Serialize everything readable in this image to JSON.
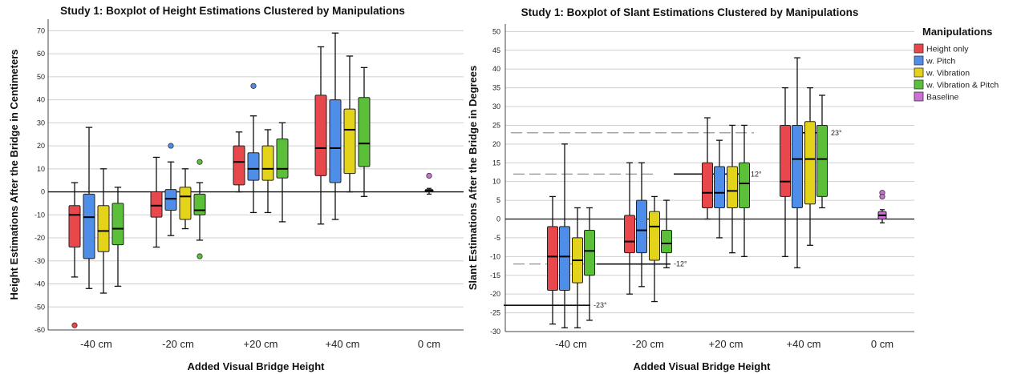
{
  "chart_data": [
    {
      "type": "boxplot",
      "title": "Study 1:  Boxplot of Height  Estimations Clustered by Manipulations",
      "xlabel": "Added Visual Bridge Height",
      "ylabel": "Height  Estimations After the Bridge in Centimeters",
      "ylim": [
        -60,
        75
      ],
      "yticks": [
        -60,
        -50,
        -40,
        -30,
        -20,
        -10,
        0,
        10,
        20,
        30,
        40,
        50,
        60,
        70
      ],
      "categories": [
        "-40 cm",
        "-20 cm",
        "+20 cm",
        "+40 cm",
        "0 cm"
      ],
      "grid": true,
      "series": [
        {
          "name": "Height only",
          "color": "#e8474b",
          "boxes": [
            {
              "category": "-40 cm",
              "min": -37,
              "q1": -24,
              "median": -10,
              "q3": -6,
              "max": 4,
              "outliers": [
                -58
              ]
            },
            {
              "category": "-20 cm",
              "min": -24,
              "q1": -11,
              "median": -6,
              "q3": 0,
              "max": 15,
              "outliers": []
            },
            {
              "category": "+20 cm",
              "min": 0,
              "q1": 3,
              "median": 13,
              "q3": 20,
              "max": 26,
              "outliers": []
            },
            {
              "category": "+40 cm",
              "min": -14,
              "q1": 7,
              "median": 19,
              "q3": 42,
              "max": 63,
              "outliers": []
            }
          ]
        },
        {
          "name": "w. Pitch",
          "color": "#4f8ee8",
          "boxes": [
            {
              "category": "-40 cm",
              "min": -42,
              "q1": -29,
              "median": -11,
              "q3": -1,
              "max": 28,
              "outliers": []
            },
            {
              "category": "-20 cm",
              "min": -19,
              "q1": -8,
              "median": -3,
              "q3": 1,
              "max": 13,
              "outliers": [
                20
              ]
            },
            {
              "category": "+20 cm",
              "min": -9,
              "q1": 5,
              "median": 10,
              "q3": 17,
              "max": 33,
              "outliers": [
                46
              ]
            },
            {
              "category": "+40 cm",
              "min": -12,
              "q1": 4,
              "median": 19,
              "q3": 40,
              "max": 69,
              "outliers": []
            }
          ]
        },
        {
          "name": "w. Vibration",
          "color": "#e3d31a",
          "boxes": [
            {
              "category": "-40 cm",
              "min": -44,
              "q1": -26,
              "median": -17,
              "q3": -6,
              "max": 10,
              "outliers": []
            },
            {
              "category": "-20 cm",
              "min": -16,
              "q1": -12,
              "median": -2,
              "q3": 2,
              "max": 10,
              "outliers": []
            },
            {
              "category": "+20 cm",
              "min": -9,
              "q1": 5,
              "median": 10,
              "q3": 20,
              "max": 27,
              "outliers": []
            },
            {
              "category": "+40 cm",
              "min": 0,
              "q1": 8,
              "median": 27,
              "q3": 36,
              "max": 59,
              "outliers": []
            }
          ]
        },
        {
          "name": "w. Vibration & Pitch",
          "color": "#5cbf3a",
          "boxes": [
            {
              "category": "-40 cm",
              "min": -41,
              "q1": -23,
              "median": -16,
              "q3": -5,
              "max": 2,
              "outliers": []
            },
            {
              "category": "-20 cm",
              "min": -21,
              "q1": -10,
              "median": -8,
              "q3": -1,
              "max": 4,
              "outliers": [
                13,
                -28
              ]
            },
            {
              "category": "+20 cm",
              "min": -13,
              "q1": 6,
              "median": 10,
              "q3": 23,
              "max": 30,
              "outliers": []
            },
            {
              "category": "+40 cm",
              "min": -2,
              "q1": 11,
              "median": 21,
              "q3": 41,
              "max": 54,
              "outliers": []
            }
          ]
        },
        {
          "name": "Baseline",
          "color": "#cc6fd6",
          "boxes": [
            {
              "category": "0 cm",
              "min": -1,
              "q1": 0,
              "median": 0.5,
              "q3": 1,
              "max": 1.5,
              "outliers": [
                7
              ]
            }
          ]
        }
      ]
    },
    {
      "type": "boxplot",
      "title": "Study 1: Boxplot of Slant Estimations Clustered by Manipulations",
      "xlabel": "Added Visual Bridge Height",
      "ylabel": "Slant Estimations After the Bridge in Degrees",
      "ylim": [
        -30,
        52
      ],
      "yticks": [
        -30,
        -25,
        -20,
        -15,
        -10,
        -5,
        0,
        5,
        10,
        15,
        20,
        25,
        30,
        35,
        40,
        45,
        50
      ],
      "categories": [
        "-40 cm",
        "-20 cm",
        "+20 cm",
        "+40 cm",
        "0 cm"
      ],
      "grid": true,
      "legend": {
        "title": "Manipulations",
        "position": "top-right"
      },
      "reference_lines": [
        {
          "value": 23,
          "label": "23°"
        },
        {
          "value": 12,
          "label": "12°"
        },
        {
          "value": -12,
          "label": "-12°"
        },
        {
          "value": -23,
          "label": "-23°"
        }
      ],
      "series": [
        {
          "name": "Height only",
          "color": "#e8474b",
          "boxes": [
            {
              "category": "-40 cm",
              "min": -28,
              "q1": -19,
              "median": -10,
              "q3": -2,
              "max": 6,
              "outliers": []
            },
            {
              "category": "-20 cm",
              "min": -20,
              "q1": -9,
              "median": -6,
              "q3": 1,
              "max": 15,
              "outliers": []
            },
            {
              "category": "+20 cm",
              "min": 0,
              "q1": 3,
              "median": 7,
              "q3": 15,
              "max": 27,
              "outliers": []
            },
            {
              "category": "+40 cm",
              "min": -10,
              "q1": 6,
              "median": 10,
              "q3": 25,
              "max": 35,
              "outliers": []
            }
          ]
        },
        {
          "name": "w. Pitch",
          "color": "#4f8ee8",
          "boxes": [
            {
              "category": "-40 cm",
              "min": -29,
              "q1": -19,
              "median": -10,
              "q3": -2,
              "max": 20,
              "outliers": []
            },
            {
              "category": "-20 cm",
              "min": -18,
              "q1": -9,
              "median": -3,
              "q3": 5,
              "max": 15,
              "outliers": []
            },
            {
              "category": "+20 cm",
              "min": -5,
              "q1": 3,
              "median": 7,
              "q3": 14,
              "max": 21,
              "outliers": []
            },
            {
              "category": "+40 cm",
              "min": -13,
              "q1": 3,
              "median": 16,
              "q3": 25,
              "max": 43,
              "outliers": []
            }
          ]
        },
        {
          "name": "w. Vibration",
          "color": "#e3d31a",
          "boxes": [
            {
              "category": "-40 cm",
              "min": -29,
              "q1": -17,
              "median": -11,
              "q3": -5,
              "max": 3,
              "outliers": []
            },
            {
              "category": "-20 cm",
              "min": -22,
              "q1": -11,
              "median": -2,
              "q3": 2,
              "max": 6,
              "outliers": []
            },
            {
              "category": "+20 cm",
              "min": -9,
              "q1": 3,
              "median": 7.5,
              "q3": 14,
              "max": 25,
              "outliers": []
            },
            {
              "category": "+40 cm",
              "min": -7,
              "q1": 4,
              "median": 16,
              "q3": 26,
              "max": 35,
              "outliers": []
            }
          ]
        },
        {
          "name": "w. Vibration & Pitch",
          "color": "#5cbf3a",
          "boxes": [
            {
              "category": "-40 cm",
              "min": -27,
              "q1": -15,
              "median": -8.5,
              "q3": -3,
              "max": 3,
              "outliers": []
            },
            {
              "category": "-20 cm",
              "min": -13,
              "q1": -9,
              "median": -6.5,
              "q3": -3,
              "max": 5,
              "outliers": []
            },
            {
              "category": "+20 cm",
              "min": -10,
              "q1": 3,
              "median": 9.5,
              "q3": 15,
              "max": 25,
              "outliers": []
            },
            {
              "category": "+40 cm",
              "min": 3,
              "q1": 6,
              "median": 16,
              "q3": 25,
              "max": 33,
              "outliers": []
            }
          ]
        },
        {
          "name": "Baseline",
          "color": "#cc6fd6",
          "boxes": [
            {
              "category": "0 cm",
              "min": -1,
              "q1": 0,
              "median": 1,
              "q3": 2,
              "max": 2.5,
              "outliers": [
                7,
                6
              ]
            }
          ]
        }
      ]
    }
  ]
}
